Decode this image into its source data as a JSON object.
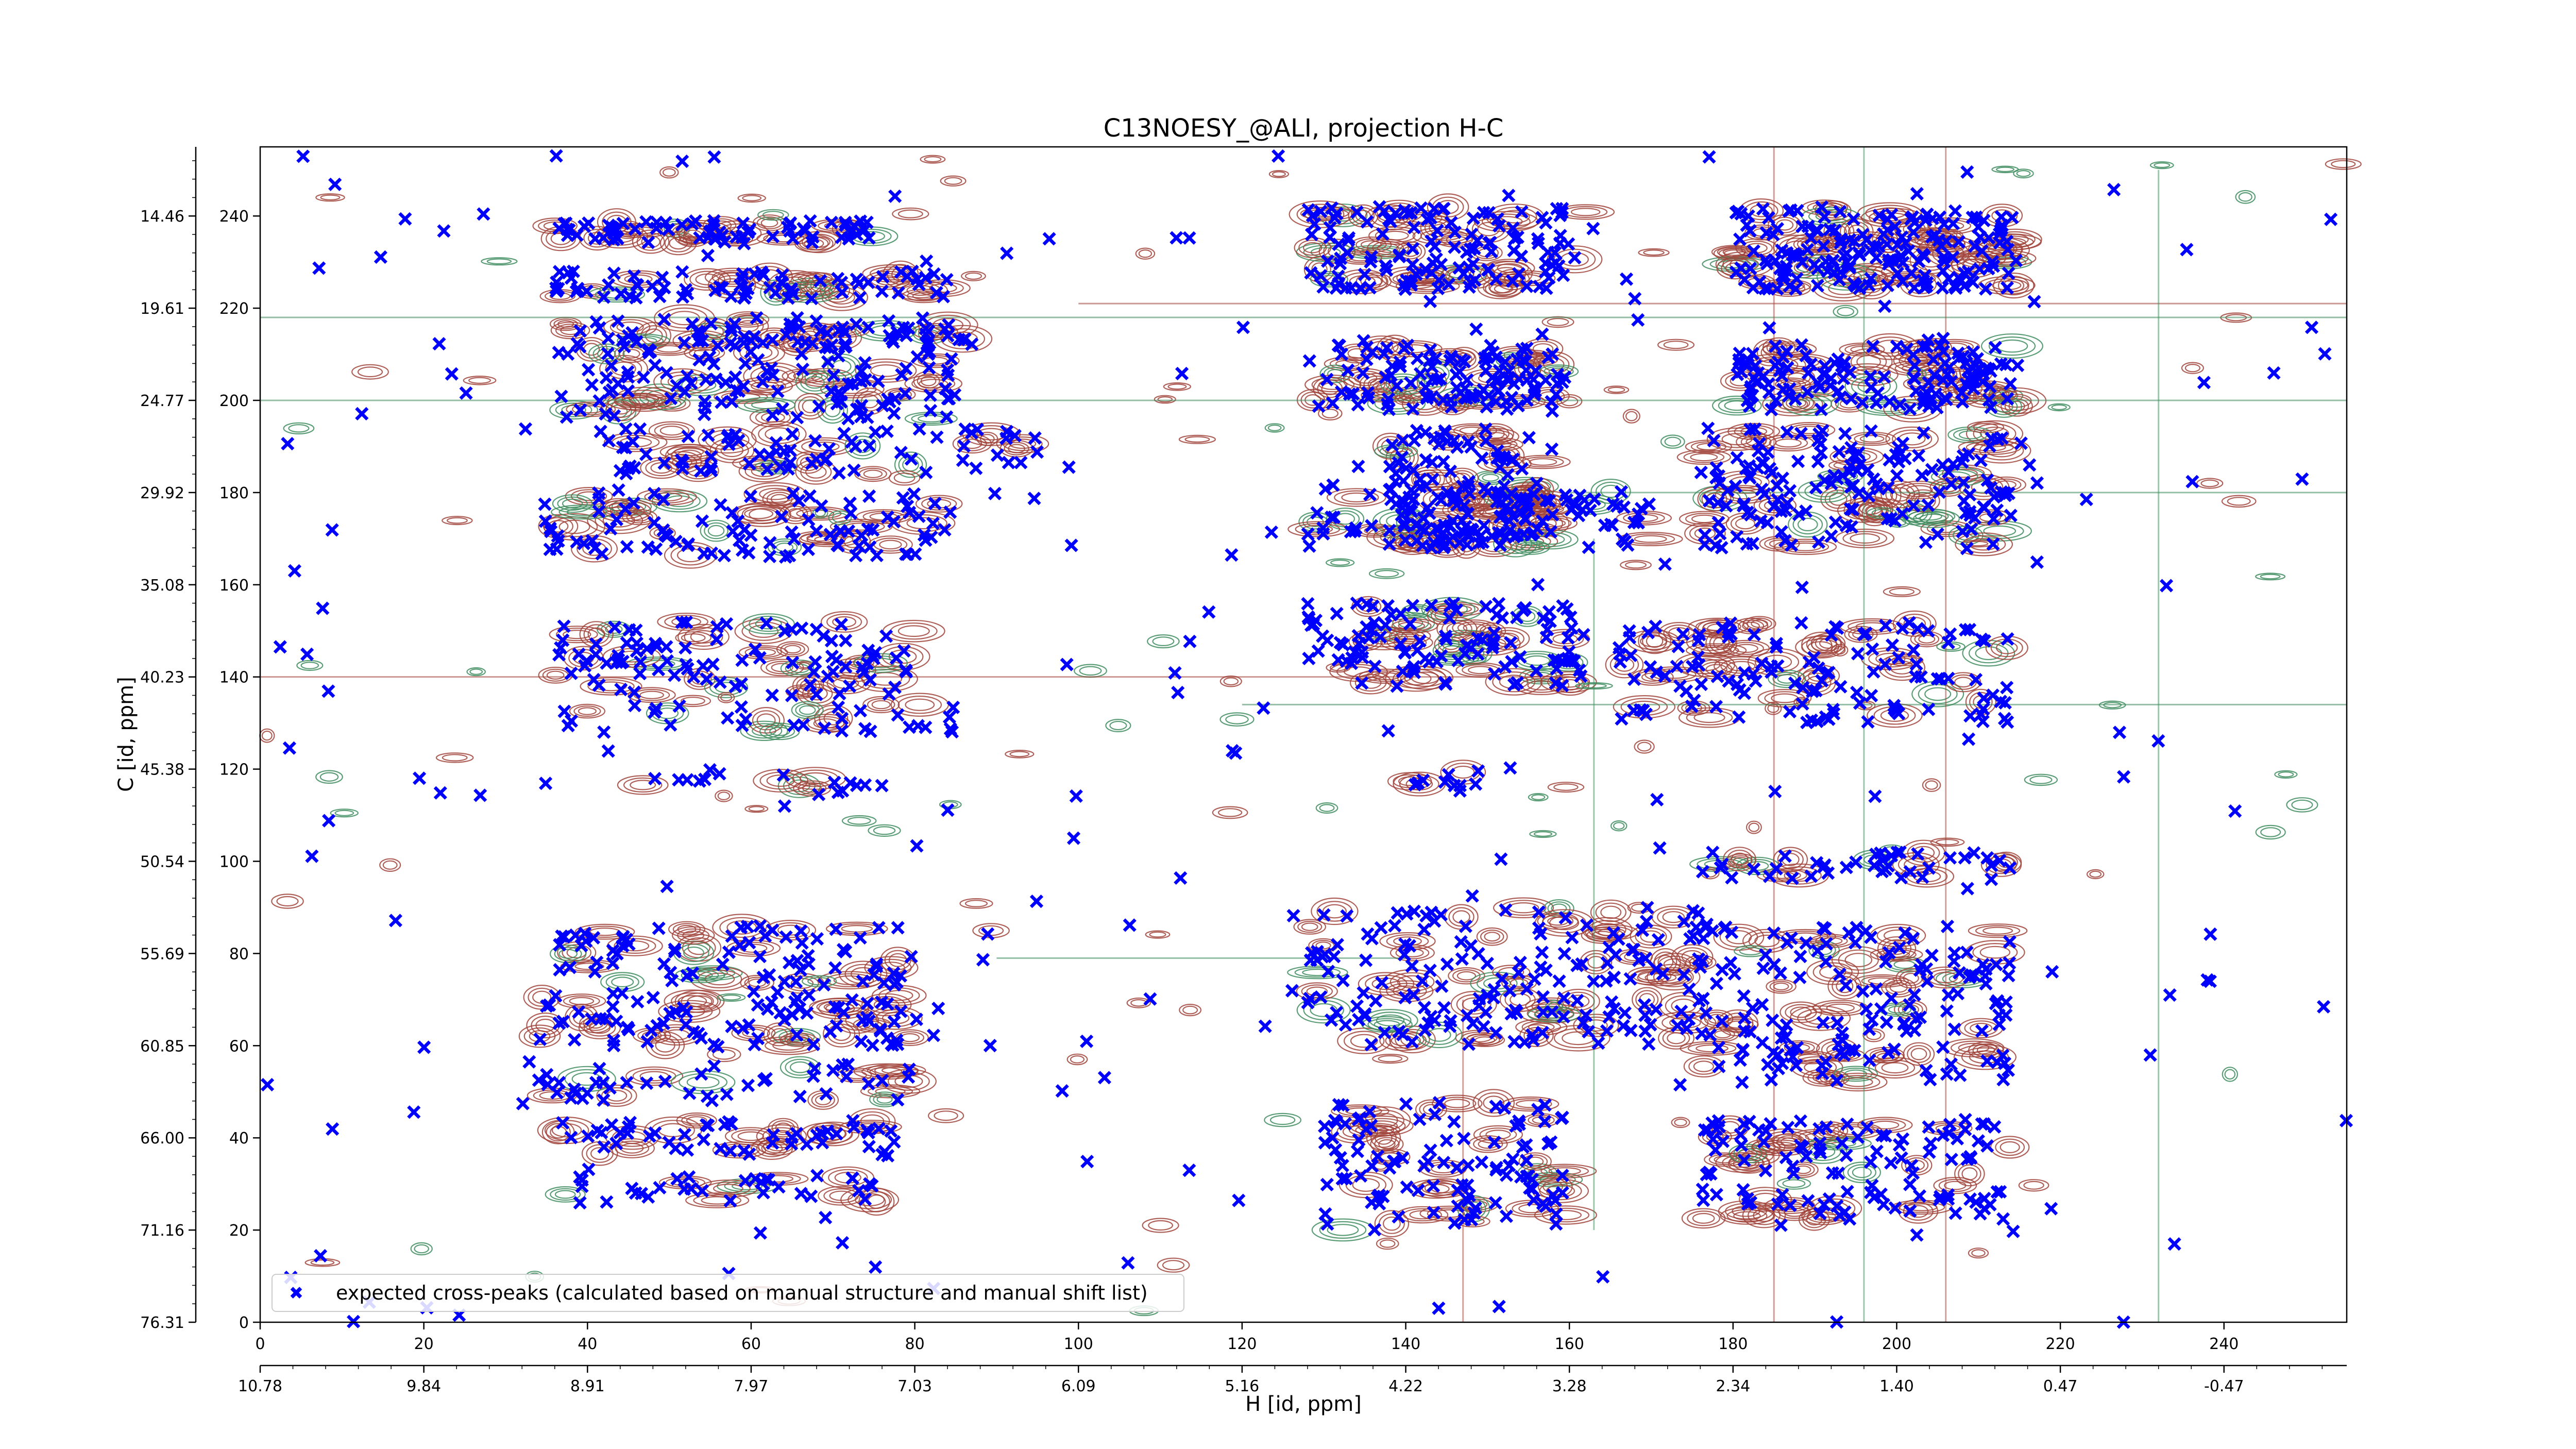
{
  "chart_data": {
    "type": "scatter",
    "title": "C13NOESY_@ALI, projection H-C",
    "xlabel": "H [id, ppm]",
    "ylabel": "C [id, ppm]",
    "xlim": [
      0,
      255
    ],
    "ylim": [
      0,
      255
    ],
    "x_ticks": [
      "0",
      "20",
      "40",
      "60",
      "80",
      "100",
      "120",
      "140",
      "160",
      "180",
      "200",
      "220",
      "240"
    ],
    "y_ticks": [
      "0",
      "20",
      "40",
      "60",
      "80",
      "100",
      "120",
      "140",
      "160",
      "180",
      "200",
      "220",
      "240"
    ],
    "secondary_x_ticks": [
      "10.78",
      "9.84",
      "8.91",
      "7.97",
      "7.03",
      "6.09",
      "5.16",
      "4.22",
      "3.28",
      "2.34",
      "1.40",
      "0.47",
      "-0.47"
    ],
    "secondary_y_ticks": [
      "76.31",
      "71.16",
      "66.00",
      "60.85",
      "55.69",
      "50.54",
      "45.38",
      "40.23",
      "35.08",
      "29.92",
      "24.77",
      "19.61",
      "14.46"
    ],
    "legend": {
      "placement": "bottom-left",
      "label": "expected cross-peaks (calculated based on manual structure and manual shift list)"
    },
    "series": [
      {
        "name": "expected cross-peaks (calculated based on manual structure and manual shift list)",
        "color": "#0000ff",
        "marker": "x"
      }
    ],
    "contour_colors": {
      "positive": "#a0433a",
      "negative": "#3e8c5e"
    },
    "peak_clusters": [
      {
        "x": [
          36,
          60
        ],
        "y": [
          234,
          239
        ],
        "n": 48
      },
      {
        "x": [
          62,
          76
        ],
        "y": [
          234,
          239
        ],
        "n": 22
      },
      {
        "x": [
          36,
          85
        ],
        "y": [
          222,
          228
        ],
        "n": 70
      },
      {
        "x": [
          36,
          87
        ],
        "y": [
          212,
          218
        ],
        "n": 70
      },
      {
        "x": [
          36,
          85
        ],
        "y": [
          196,
          212
        ],
        "n": 110
      },
      {
        "x": [
          44,
          95
        ],
        "y": [
          184,
          194
        ],
        "n": 70
      },
      {
        "x": [
          34,
          85
        ],
        "y": [
          166,
          180
        ],
        "n": 90
      },
      {
        "x": [
          36,
          80
        ],
        "y": [
          136,
          152
        ],
        "n": 90
      },
      {
        "x": [
          36,
          85
        ],
        "y": [
          128,
          134
        ],
        "n": 30
      },
      {
        "x": [
          46,
          76
        ],
        "y": [
          115,
          120
        ],
        "n": 14
      },
      {
        "x": [
          36,
          80
        ],
        "y": [
          73,
          86
        ],
        "n": 70
      },
      {
        "x": [
          34,
          84
        ],
        "y": [
          60,
          72
        ],
        "n": 80
      },
      {
        "x": [
          34,
          80
        ],
        "y": [
          48,
          56
        ],
        "n": 40
      },
      {
        "x": [
          36,
          78
        ],
        "y": [
          36,
          44
        ],
        "n": 50
      },
      {
        "x": [
          36,
          78
        ],
        "y": [
          26,
          32
        ],
        "n": 30
      },
      {
        "x": [
          128,
          162
        ],
        "y": [
          224,
          242
        ],
        "n": 130
      },
      {
        "x": [
          128,
          160
        ],
        "y": [
          198,
          212
        ],
        "n": 110
      },
      {
        "x": [
          138,
          158
        ],
        "y": [
          168,
          194
        ],
        "n": 120
      },
      {
        "x": [
          128,
          170
        ],
        "y": [
          168,
          182
        ],
        "n": 80
      },
      {
        "x": [
          128,
          162
        ],
        "y": [
          138,
          156
        ],
        "n": 110
      },
      {
        "x": [
          140,
          150
        ],
        "y": [
          115,
          120
        ],
        "n": 10
      },
      {
        "x": [
          128,
          178
        ],
        "y": [
          60,
          90
        ],
        "n": 170
      },
      {
        "x": [
          130,
          160
        ],
        "y": [
          20,
          48
        ],
        "n": 100
      },
      {
        "x": [
          180,
          215
        ],
        "y": [
          224,
          242
        ],
        "n": 180
      },
      {
        "x": [
          180,
          215
        ],
        "y": [
          198,
          212
        ],
        "n": 130
      },
      {
        "x": [
          176,
          214
        ],
        "y": [
          168,
          194
        ],
        "n": 150
      },
      {
        "x": [
          166,
          214
        ],
        "y": [
          130,
          152
        ],
        "n": 120
      },
      {
        "x": [
          176,
          214
        ],
        "y": [
          96,
          102
        ],
        "n": 40
      },
      {
        "x": [
          176,
          214
        ],
        "y": [
          52,
          86
        ],
        "n": 140
      },
      {
        "x": [
          176,
          214
        ],
        "y": [
          32,
          44
        ],
        "n": 70
      },
      {
        "x": [
          176,
          214
        ],
        "y": [
          22,
          30
        ],
        "n": 40
      },
      {
        "x": [
          0,
          255
        ],
        "y": [
          0,
          255
        ],
        "n": 220
      }
    ]
  }
}
